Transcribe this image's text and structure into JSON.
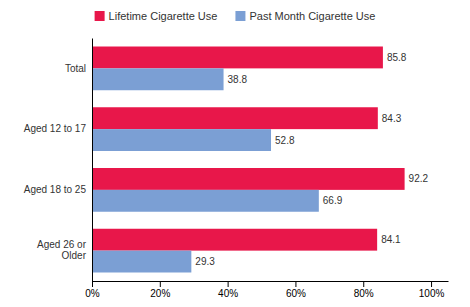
{
  "chart_data": {
    "type": "bar",
    "orientation": "horizontal",
    "categories": [
      "Total",
      "Aged 12 to 17",
      "Aged 18 to 25",
      "Aged 26 or\nOlder"
    ],
    "series": [
      {
        "name": "Lifetime Cigarette Use",
        "color": "#e8174a",
        "values": [
          85.8,
          84.3,
          92.2,
          84.1
        ]
      },
      {
        "name": "Past Month Cigarette Use",
        "color": "#7b9fd4",
        "values": [
          38.8,
          52.8,
          66.9,
          29.3
        ]
      }
    ],
    "xlim": [
      0,
      105
    ],
    "xticks": [
      {
        "value": 0,
        "label": "0%"
      },
      {
        "value": 20,
        "label": "20%"
      },
      {
        "value": 40,
        "label": "40%"
      },
      {
        "value": 60,
        "label": "60%"
      },
      {
        "value": 80,
        "label": "80%"
      },
      {
        "value": 100,
        "label": "100%"
      }
    ],
    "data_labels": true,
    "legend": "top",
    "grid": false
  }
}
